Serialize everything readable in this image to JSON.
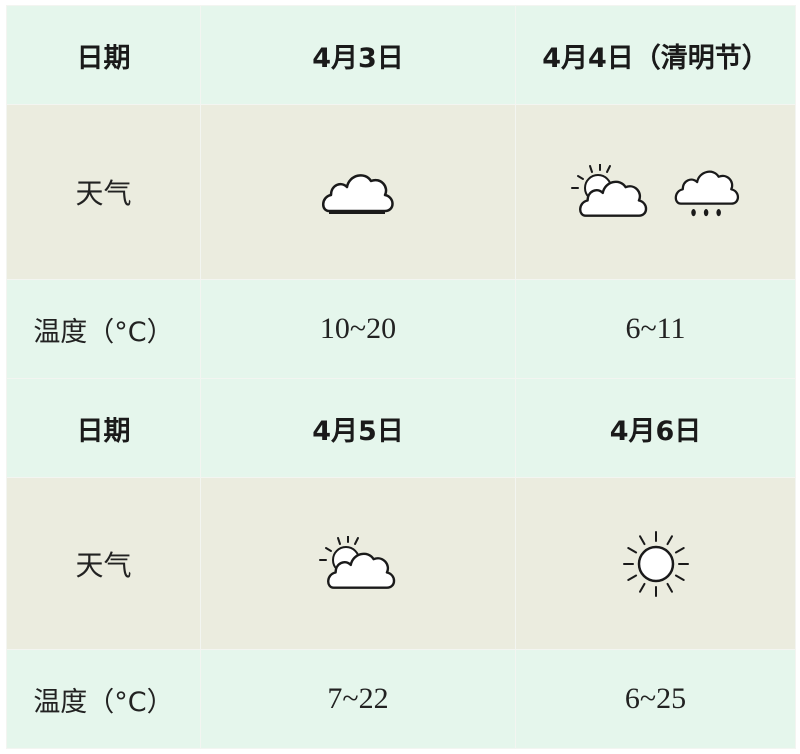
{
  "labels": {
    "date": "日期",
    "weather": "天气",
    "temperature": "温度（°C）"
  },
  "days": [
    {
      "date": "4月3日",
      "weather_icons": [
        "cloudy-icon"
      ],
      "temp": "10~20"
    },
    {
      "date": "4月4日（清明节）",
      "weather_icons": [
        "partly-cloudy-icon",
        "rain-icon"
      ],
      "temp": "6~11"
    },
    {
      "date": "4月5日",
      "weather_icons": [
        "partly-cloudy-icon"
      ],
      "temp": "7~22"
    },
    {
      "date": "4月6日",
      "weather_icons": [
        "sunny-icon"
      ],
      "temp": "6~25"
    }
  ],
  "colors": {
    "header_bg": "#e5f6ec",
    "weather_bg": "#ebecdf"
  }
}
